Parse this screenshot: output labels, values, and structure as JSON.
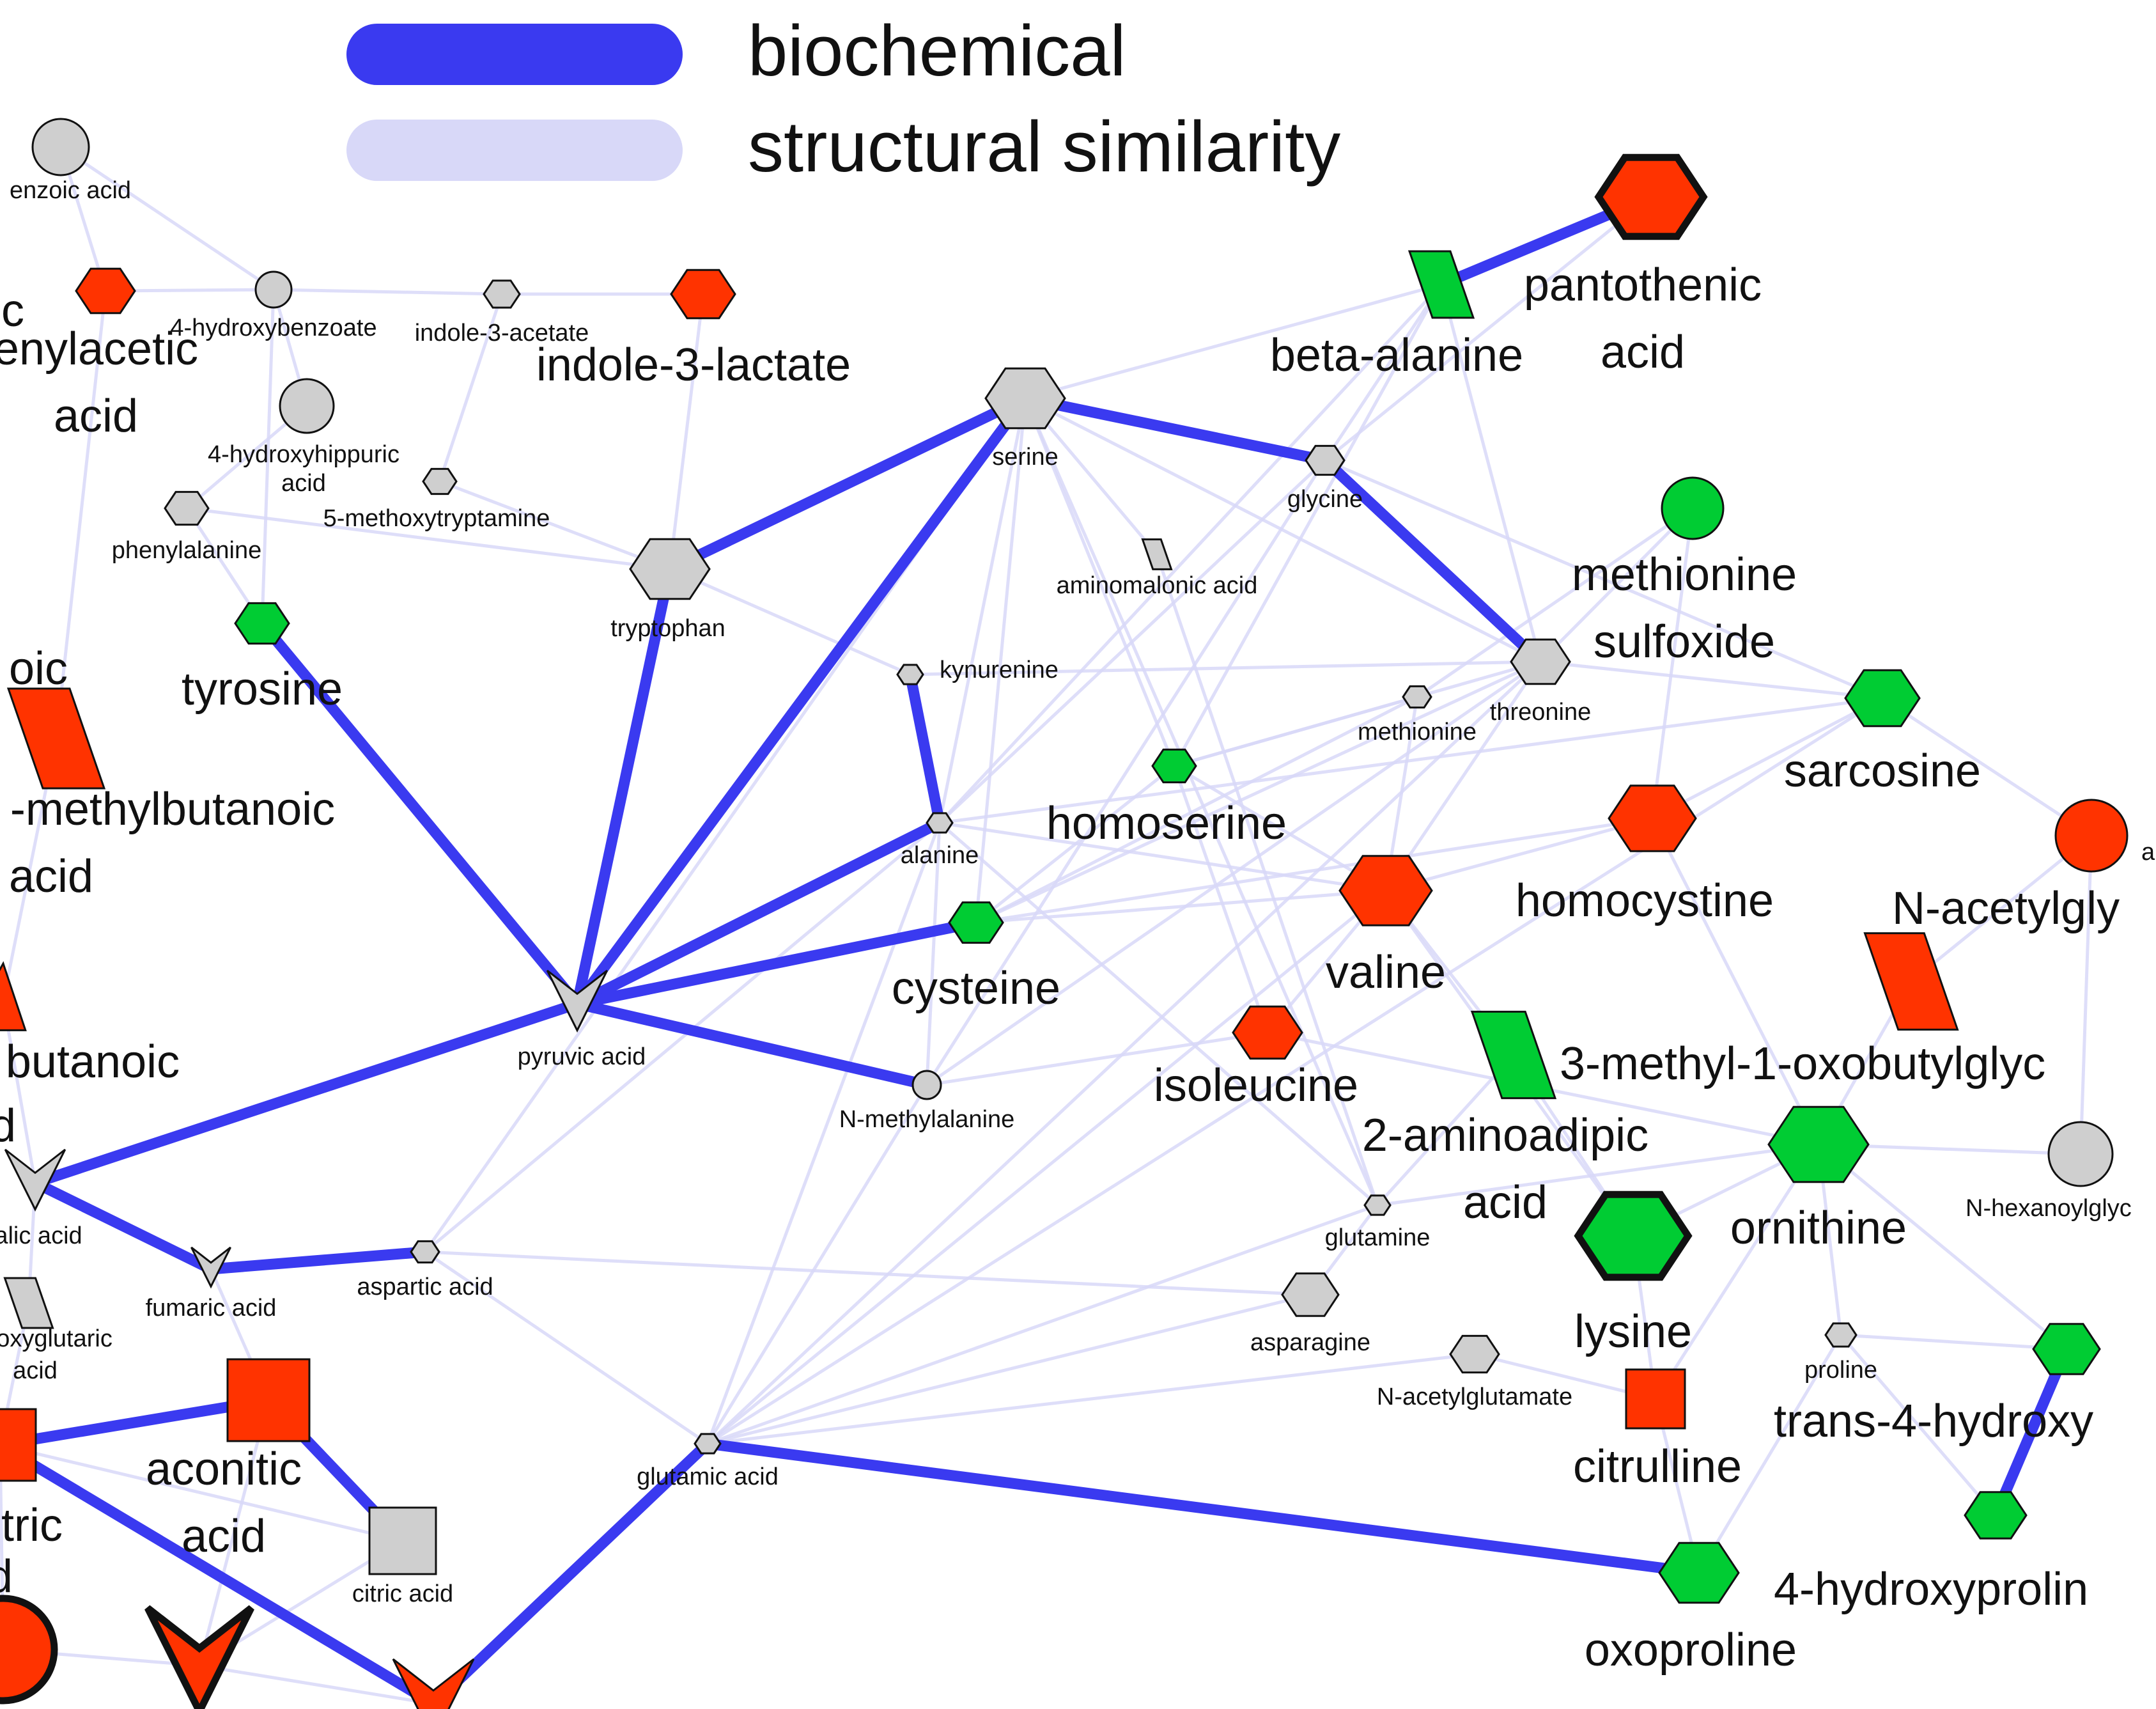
{
  "legend": {
    "biochemical_label": "biochemical",
    "structural_label": "structural similarity",
    "biochemical_color": "#3a3af0",
    "structural_color": "#d8d8f8"
  },
  "colors": {
    "increased": "#ff3300",
    "decreased": "#00cc33",
    "unchanged": "#cfcfcf",
    "outline": "#111111"
  },
  "nodes": [
    {
      "id": "benzoic_acid",
      "lines": [
        "enzoic acid"
      ],
      "size": "small",
      "shape": "circle",
      "color": "gray"
    },
    {
      "id": "phenylacetic_acid",
      "lines": [
        "c",
        "enylacetic",
        "acid"
      ],
      "size": "big",
      "shape": "hexagon",
      "color": "red"
    },
    {
      "id": "hydroxybenzoate",
      "lines": [
        "4-hydroxybenzoate"
      ],
      "size": "small",
      "shape": "circle",
      "color": "gray"
    },
    {
      "id": "indole_acetate",
      "lines": [
        "indole-3-acetate"
      ],
      "size": "small",
      "shape": "hexagon",
      "color": "gray"
    },
    {
      "id": "indole_lactate",
      "lines": [
        "indole-3-lactate"
      ],
      "size": "big",
      "shape": "hexagon",
      "color": "red"
    },
    {
      "id": "hydroxyhippuric",
      "lines": [
        "4-hydroxyhippuric",
        "acid"
      ],
      "size": "small",
      "shape": "circle",
      "color": "gray"
    },
    {
      "id": "methoxytryptamine",
      "lines": [
        "5-methoxytryptamine"
      ],
      "size": "small",
      "shape": "hexagon",
      "color": "gray"
    },
    {
      "id": "phenylalanine",
      "lines": [
        "phenylalanine"
      ],
      "size": "small",
      "shape": "hexagon",
      "color": "gray"
    },
    {
      "id": "tyrosine",
      "lines": [
        "tyrosine"
      ],
      "size": "big",
      "shape": "hexagon",
      "color": "green"
    },
    {
      "id": "tryptophan",
      "lines": [
        "tryptophan"
      ],
      "size": "small",
      "shape": "hexagon",
      "color": "gray"
    },
    {
      "id": "serine",
      "lines": [
        "serine"
      ],
      "size": "small",
      "shape": "hexagon",
      "color": "gray"
    },
    {
      "id": "glycine",
      "lines": [
        "glycine"
      ],
      "size": "small",
      "shape": "hexagon",
      "color": "gray"
    },
    {
      "id": "beta_alanine",
      "lines": [
        "beta-alanine"
      ],
      "size": "big",
      "shape": "parallelogram",
      "color": "green"
    },
    {
      "id": "pantothenic_acid",
      "lines": [
        "pantothenic",
        "acid"
      ],
      "size": "big",
      "shape": "hexagon",
      "color": "red",
      "thick": true
    },
    {
      "id": "aminomalonic_acid",
      "lines": [
        "aminomalonic acid"
      ],
      "size": "small",
      "shape": "parallelogram",
      "color": "gray"
    },
    {
      "id": "methionine_sulfoxide",
      "lines": [
        "methionine",
        "sulfoxide"
      ],
      "size": "big",
      "shape": "circle",
      "color": "green"
    },
    {
      "id": "kynurenine",
      "lines": [
        "kynurenine"
      ],
      "size": "small",
      "shape": "hexagon",
      "color": "gray"
    },
    {
      "id": "methionine",
      "lines": [
        "methionine"
      ],
      "size": "small",
      "shape": "hexagon",
      "color": "gray"
    },
    {
      "id": "threonine",
      "lines": [
        "threonine"
      ],
      "size": "small",
      "shape": "hexagon",
      "color": "gray"
    },
    {
      "id": "sarcosine",
      "lines": [
        "sarcosine"
      ],
      "size": "big",
      "shape": "hexagon",
      "color": "green"
    },
    {
      "id": "homoserine",
      "lines": [
        "homoserine"
      ],
      "size": "big",
      "shape": "hexagon",
      "color": "green"
    },
    {
      "id": "alanine",
      "lines": [
        "alanine"
      ],
      "size": "small",
      "shape": "hexagon",
      "color": "gray"
    },
    {
      "id": "homocystine",
      "lines": [
        "homocystine"
      ],
      "size": "big",
      "shape": "hexagon",
      "color": "red"
    },
    {
      "id": "n_acetylglycine",
      "lines": [
        "N-acetylgly"
      ],
      "size": "big",
      "shape": "circle",
      "color": "red"
    },
    {
      "id": "partial_a",
      "lines": [
        "a"
      ],
      "size": "small",
      "shape": "none",
      "color": "gray"
    },
    {
      "id": "methylbutanoic_acid",
      "lines": [
        "oic",
        "-methylbutanoic",
        "acid"
      ],
      "size": "big",
      "shape": "parallelogram",
      "color": "red"
    },
    {
      "id": "cysteine",
      "lines": [
        "cysteine"
      ],
      "size": "big",
      "shape": "hexagon",
      "color": "green"
    },
    {
      "id": "valine",
      "lines": [
        "valine"
      ],
      "size": "big",
      "shape": "hexagon",
      "color": "red"
    },
    {
      "id": "oxobutylglycine",
      "lines": [
        "3-methyl-1-oxobutylglyc"
      ],
      "size": "big",
      "shape": "parallelogram",
      "color": "red"
    },
    {
      "id": "pyruvic_acid",
      "lines": [
        "pyruvic acid"
      ],
      "size": "small",
      "shape": "vee",
      "color": "gray"
    },
    {
      "id": "n_methylalanine",
      "lines": [
        "N-methylalanine"
      ],
      "size": "small",
      "shape": "circle",
      "color": "gray"
    },
    {
      "id": "isoleucine",
      "lines": [
        "isoleucine"
      ],
      "size": "big",
      "shape": "hexagon",
      "color": "red"
    },
    {
      "id": "aminoadipic_acid",
      "lines": [
        "2-aminoadipic",
        "acid"
      ],
      "size": "big",
      "shape": "parallelogram",
      "color": "green"
    },
    {
      "id": "butanoic_acid",
      "lines": [
        "butanoic",
        "d"
      ],
      "size": "big",
      "shape": "triangle",
      "color": "red"
    },
    {
      "id": "n_hexanoylglycine",
      "lines": [
        "N-hexanoylglyc"
      ],
      "size": "small",
      "shape": "circle",
      "color": "gray"
    },
    {
      "id": "malic_acid",
      "lines": [
        "alic acid"
      ],
      "size": "small",
      "shape": "vee",
      "color": "gray"
    },
    {
      "id": "glutamine",
      "lines": [
        "glutamine"
      ],
      "size": "small",
      "shape": "hexagon",
      "color": "gray"
    },
    {
      "id": "ornithine",
      "lines": [
        "ornithine"
      ],
      "size": "big",
      "shape": "hexagon",
      "color": "green"
    },
    {
      "id": "fumaric_acid",
      "lines": [
        "fumaric acid"
      ],
      "size": "small",
      "shape": "vee",
      "color": "gray"
    },
    {
      "id": "aspartic_acid",
      "lines": [
        "aspartic acid"
      ],
      "size": "small",
      "shape": "hexagon",
      "color": "gray"
    },
    {
      "id": "lysine",
      "lines": [
        "lysine"
      ],
      "size": "big",
      "shape": "hexagon",
      "color": "green",
      "thick": true
    },
    {
      "id": "oxoglutaric_acid",
      "lines": [
        "oxyglutaric",
        "acid"
      ],
      "size": "small",
      "shape": "parallelogram",
      "color": "gray"
    },
    {
      "id": "asparagine",
      "lines": [
        "asparagine"
      ],
      "size": "small",
      "shape": "hexagon",
      "color": "gray"
    },
    {
      "id": "proline",
      "lines": [
        "proline"
      ],
      "size": "small",
      "shape": "hexagon",
      "color": "gray"
    },
    {
      "id": "n_acetylglutamate",
      "lines": [
        "N-acetylglutamate"
      ],
      "size": "small",
      "shape": "hexagon",
      "color": "gray"
    },
    {
      "id": "trans_hydroxyproline",
      "lines": [
        "trans-4-hydroxy"
      ],
      "size": "big",
      "shape": "hexagon",
      "color": "green"
    },
    {
      "id": "citrulline",
      "lines": [
        "citrulline"
      ],
      "size": "big",
      "shape": "square",
      "color": "red"
    },
    {
      "id": "aconitic_acid",
      "lines": [
        "aconitic",
        "acid"
      ],
      "size": "big",
      "shape": "square",
      "color": "red"
    },
    {
      "id": "isocitric_acid",
      "lines": [
        "tric",
        "d"
      ],
      "size": "big",
      "shape": "square",
      "color": "red"
    },
    {
      "id": "glutamic_acid",
      "lines": [
        "glutamic acid"
      ],
      "size": "small",
      "shape": "hexagon",
      "color": "gray"
    },
    {
      "id": "citric_acid",
      "lines": [
        "citric acid"
      ],
      "size": "small",
      "shape": "square",
      "color": "gray"
    },
    {
      "id": "hydroxyproline",
      "lines": [
        "4-hydroxyprolin"
      ],
      "size": "big",
      "shape": "hexagon",
      "color": "green"
    },
    {
      "id": "oxoproline",
      "lines": [
        "oxoproline"
      ],
      "size": "big",
      "shape": "hexagon",
      "color": "green"
    },
    {
      "id": "bottom_circle",
      "lines": [],
      "size": "big",
      "shape": "circle",
      "color": "red",
      "thick": true
    },
    {
      "id": "bottom_vee_1",
      "lines": [],
      "size": "big",
      "shape": "vee",
      "color": "red",
      "thick": true
    },
    {
      "id": "bottom_vee_2",
      "lines": [],
      "size": "big",
      "shape": "vee",
      "color": "red"
    }
  ],
  "biochemical_edges": [
    [
      "pantothenic_acid",
      "beta_alanine"
    ],
    [
      "tryptophan",
      "serine"
    ],
    [
      "serine",
      "glycine"
    ],
    [
      "glycine",
      "threonine"
    ],
    [
      "tyrosine",
      "pyruvic_acid"
    ],
    [
      "tryptophan",
      "pyruvic_acid"
    ],
    [
      "serine",
      "pyruvic_acid"
    ],
    [
      "kynurenine",
      "alanine"
    ],
    [
      "alanine",
      "pyruvic_acid"
    ],
    [
      "cysteine",
      "pyruvic_acid"
    ],
    [
      "pyruvic_acid",
      "n_methylalanine"
    ],
    [
      "pyruvic_acid",
      "malic_acid"
    ],
    [
      "malic_acid",
      "fumaric_acid"
    ],
    [
      "fumaric_acid",
      "aspartic_acid"
    ],
    [
      "isocitric_acid",
      "aconitic_acid"
    ],
    [
      "aconitic_acid",
      "citric_acid"
    ],
    [
      "isocitric_acid",
      "bottom_vee_2"
    ],
    [
      "glutamic_acid",
      "bottom_vee_2"
    ],
    [
      "glutamic_acid",
      "oxoproline"
    ],
    [
      "trans_hydroxyproline",
      "hydroxyproline"
    ]
  ],
  "structural_edges": [
    [
      "benzoic_acid",
      "hydroxybenzoate"
    ],
    [
      "phenylacetic_acid",
      "hydroxybenzoate"
    ],
    [
      "hydroxybenzoate",
      "indole_acetate"
    ],
    [
      "indole_acetate",
      "indole_lactate"
    ],
    [
      "indole_lactate",
      "tryptophan"
    ],
    [
      "indole_acetate",
      "methoxytryptamine"
    ],
    [
      "hydroxyhippuric",
      "phenylalanine"
    ],
    [
      "phenylalanine",
      "tyrosine"
    ],
    [
      "phenylalanine",
      "tryptophan"
    ],
    [
      "benzoic_acid",
      "phenylacetic_acid"
    ],
    [
      "hydroxybenzoate",
      "tyrosine"
    ],
    [
      "serine",
      "beta_alanine"
    ],
    [
      "serine",
      "aminomalonic_acid"
    ],
    [
      "serine",
      "alanine"
    ],
    [
      "serine",
      "threonine"
    ],
    [
      "serine",
      "homoserine"
    ],
    [
      "serine",
      "cysteine"
    ],
    [
      "glycine",
      "beta_alanine"
    ],
    [
      "glycine",
      "sarcosine"
    ],
    [
      "glycine",
      "alanine"
    ],
    [
      "beta_alanine",
      "alanine"
    ],
    [
      "beta_alanine",
      "homoserine"
    ],
    [
      "methionine_sulfoxide",
      "methionine"
    ],
    [
      "methionine_sulfoxide",
      "homocystine"
    ],
    [
      "threonine",
      "homoserine"
    ],
    [
      "threonine",
      "valine"
    ],
    [
      "threonine",
      "sarcosine"
    ],
    [
      "methionine",
      "homoserine"
    ],
    [
      "methionine",
      "cysteine"
    ],
    [
      "methionine",
      "valine"
    ],
    [
      "sarcosine",
      "n_acetylglycine"
    ],
    [
      "sarcosine",
      "alanine"
    ],
    [
      "homoserine",
      "valine"
    ],
    [
      "homoserine",
      "isoleucine"
    ],
    [
      "homoserine",
      "cysteine"
    ],
    [
      "alanine",
      "n_methylalanine"
    ],
    [
      "alanine",
      "valine"
    ],
    [
      "alanine",
      "glutamine"
    ],
    [
      "homocystine",
      "cysteine"
    ],
    [
      "homocystine",
      "valine"
    ],
    [
      "homocystine",
      "ornithine"
    ],
    [
      "n_acetylglycine",
      "n_hexanoylglycine"
    ],
    [
      "n_acetylglycine",
      "oxobutylglycine"
    ],
    [
      "valine",
      "isoleucine"
    ],
    [
      "valine",
      "aminoadipic_acid"
    ],
    [
      "valine",
      "lysine"
    ],
    [
      "isoleucine",
      "n_methylalanine"
    ],
    [
      "isoleucine",
      "ornithine"
    ],
    [
      "aminoadipic_acid",
      "glutamine"
    ],
    [
      "aminoadipic_acid",
      "lysine"
    ],
    [
      "glutamine",
      "asparagine"
    ],
    [
      "glutamine",
      "glutamic_acid"
    ],
    [
      "glutamine",
      "ornithine"
    ],
    [
      "asparagine",
      "aspartic_acid"
    ],
    [
      "asparagine",
      "glutamic_acid"
    ],
    [
      "n_acetylglutamate",
      "glutamic_acid"
    ],
    [
      "n_acetylglutamate",
      "citrulline"
    ],
    [
      "lysine",
      "ornithine"
    ],
    [
      "ornithine",
      "proline"
    ],
    [
      "ornithine",
      "citrulline"
    ],
    [
      "proline",
      "trans_hydroxyproline"
    ],
    [
      "proline",
      "oxoproline"
    ],
    [
      "proline",
      "hydroxyproline"
    ],
    [
      "oxoproline",
      "glutamic_acid"
    ],
    [
      "oxoproline",
      "citrulline"
    ],
    [
      "aspartic_acid",
      "glutamic_acid"
    ],
    [
      "aspartic_acid",
      "alanine"
    ],
    [
      "aspartic_acid",
      "serine"
    ],
    [
      "malic_acid",
      "oxoglutaric_acid"
    ],
    [
      "oxoglutaric_acid",
      "isocitric_acid"
    ],
    [
      "fumaric_acid",
      "aconitic_acid"
    ],
    [
      "aconitic_acid",
      "bottom_vee_1"
    ],
    [
      "citric_acid",
      "bottom_vee_1"
    ],
    [
      "bottom_circle",
      "isocitric_acid"
    ],
    [
      "bottom_circle",
      "bottom_vee_1"
    ],
    [
      "methylbutanoic_acid",
      "butanoic_acid"
    ],
    [
      "butanoic_acid",
      "malic_acid"
    ],
    [
      "glutamic_acid",
      "n_methylalanine"
    ],
    [
      "glutamic_acid",
      "threonine"
    ],
    [
      "glutamic_acid",
      "alanine"
    ],
    [
      "glutamic_acid",
      "valine"
    ],
    [
      "glutamic_acid",
      "sarcosine"
    ],
    [
      "n_methylalanine",
      "threonine"
    ],
    [
      "n_methylalanine",
      "glycine"
    ],
    [
      "cysteine",
      "valine"
    ],
    [
      "cysteine",
      "threonine"
    ],
    [
      "kynurenine",
      "threonine"
    ],
    [
      "aminomalonic_acid",
      "glutamine"
    ],
    [
      "methylbutanoic_acid",
      "phenylacetic_acid"
    ],
    [
      "isocitric_acid",
      "citric_acid"
    ],
    [
      "bottom_vee_1",
      "bottom_vee_2"
    ],
    [
      "oxobutylglycine",
      "ornithine"
    ],
    [
      "n_hexanoylglycine",
      "ornithine"
    ],
    [
      "trans_hydroxyproline",
      "ornithine"
    ],
    [
      "citrulline",
      "lysine"
    ],
    [
      "methionine_sulfoxide",
      "threonine"
    ],
    [
      "homocystine",
      "sarcosine"
    ],
    [
      "glycine",
      "threonine"
    ],
    [
      "serine",
      "glutamine"
    ],
    [
      "beta_alanine",
      "threonine"
    ],
    [
      "pantothenic_acid",
      "glycine"
    ],
    [
      "tryptophan",
      "kynurenine"
    ],
    [
      "methoxytryptamine",
      "tryptophan"
    ],
    [
      "hydroxyhippuric",
      "hydroxybenzoate"
    ]
  ]
}
